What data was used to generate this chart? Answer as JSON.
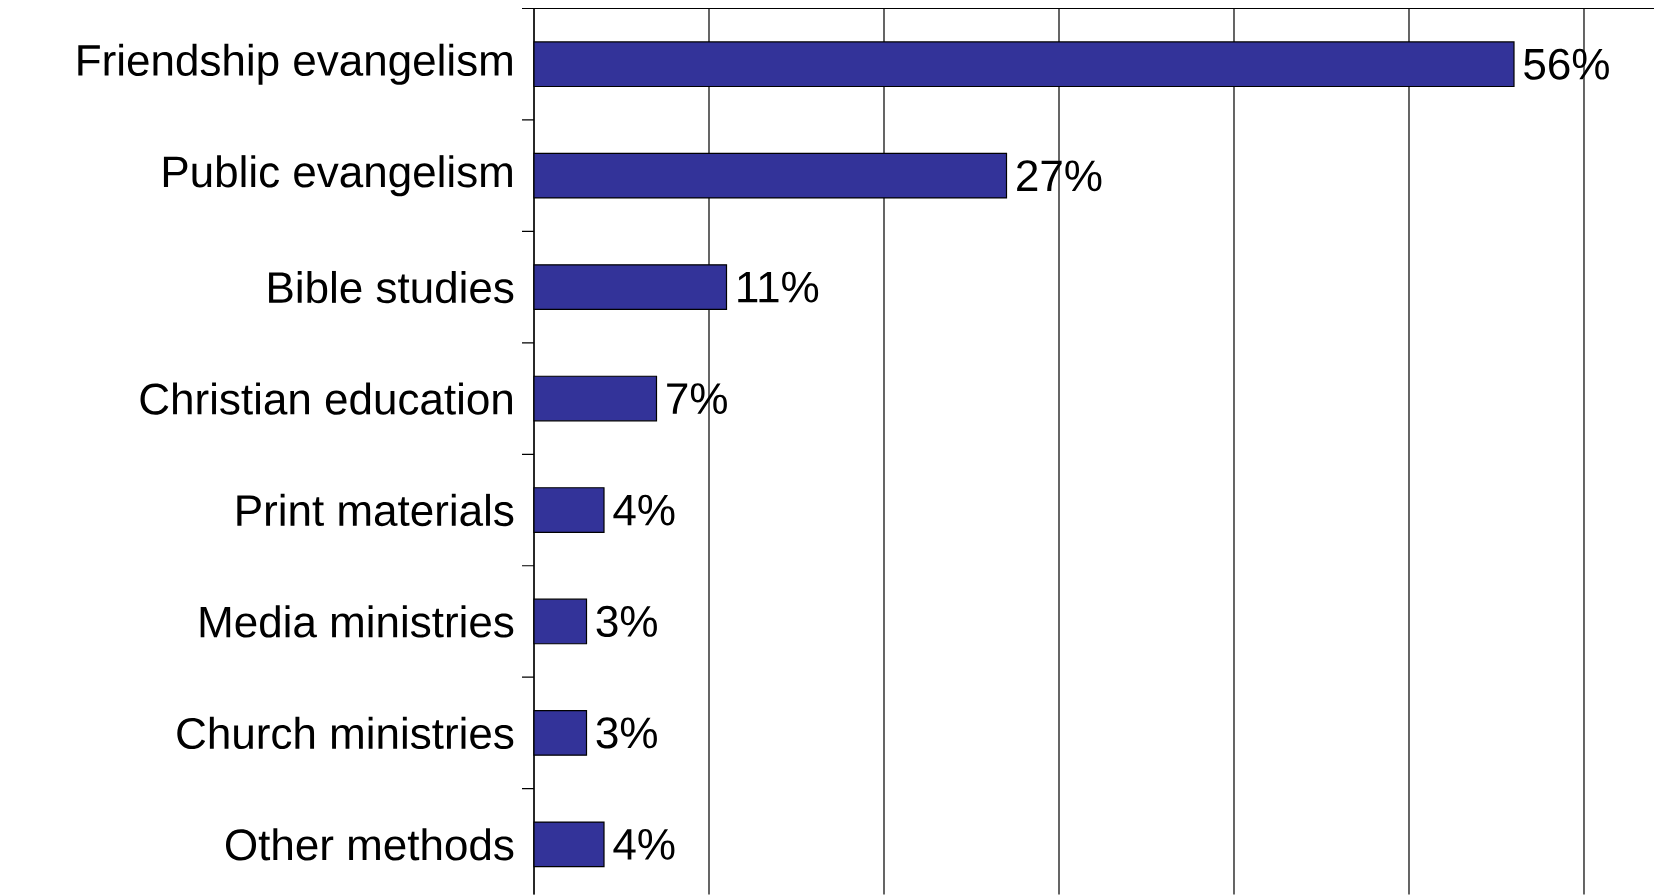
{
  "chart_data": {
    "type": "bar",
    "orientation": "horizontal",
    "categories": [
      "Friendship evangelism",
      "Public evangelism",
      "Bible studies",
      "Christian education",
      "Print materials",
      "Media ministries",
      "Church ministries",
      "Other methods"
    ],
    "values": [
      56,
      27,
      11,
      7,
      4,
      3,
      3,
      4
    ],
    "value_labels": [
      "56%",
      "27%",
      "11%",
      "7%",
      "4%",
      "3%",
      "3%",
      "4%"
    ],
    "color": "#333399",
    "xlim": [
      0,
      64
    ],
    "xticks": [
      {
        "value": 0,
        "label": null
      },
      {
        "value": 10,
        "label": null
      },
      {
        "value": 20,
        "label": null
      },
      {
        "value": 30,
        "label": null
      },
      {
        "value": 40,
        "label": null
      },
      {
        "value": 50,
        "label": null
      },
      {
        "value": 60,
        "label": null
      }
    ],
    "tick_labels": "y",
    "grid": "x"
  }
}
